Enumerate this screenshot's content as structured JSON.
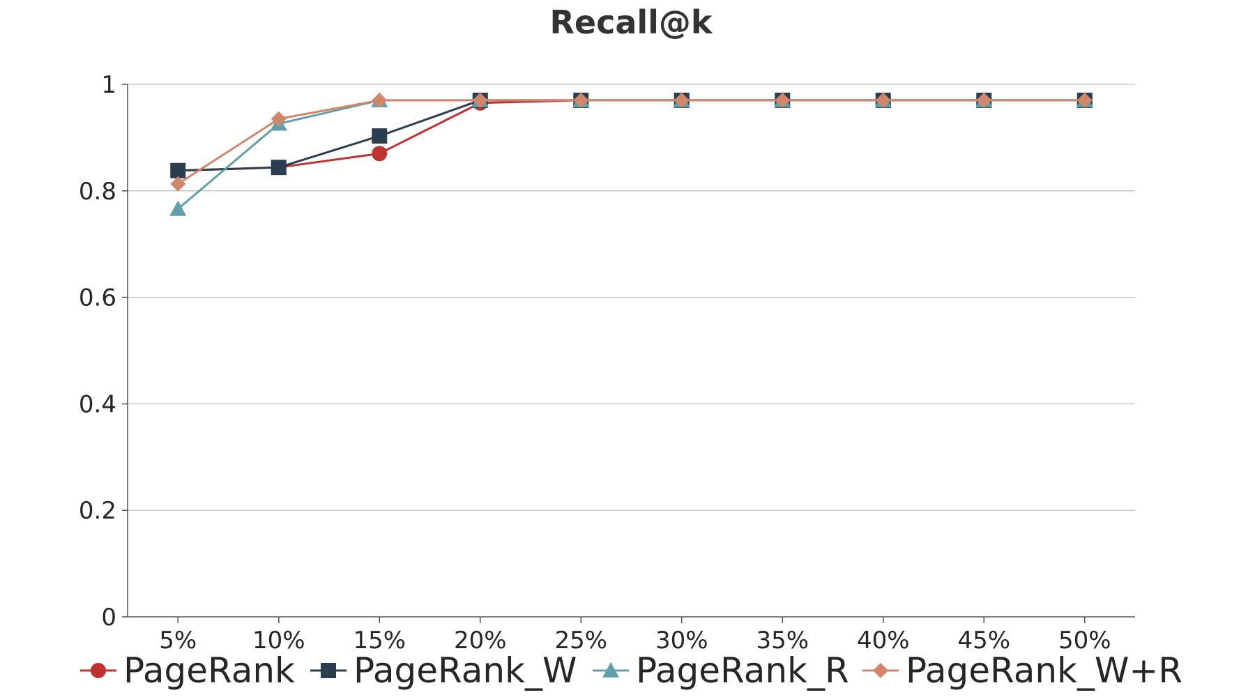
{
  "chart_data": {
    "type": "line",
    "title": "Recall@k",
    "xlabel": "",
    "ylabel": "",
    "categories": [
      "5%",
      "10%",
      "15%",
      "20%",
      "25%",
      "30%",
      "35%",
      "40%",
      "45%",
      "50%"
    ],
    "ylim": [
      0,
      1
    ],
    "yticks": [
      0,
      0.2,
      0.4,
      0.6,
      0.8,
      1
    ],
    "ytick_labels": [
      "0",
      "0.2",
      "0.4",
      "0.6",
      "0.8",
      "1"
    ],
    "grid": true,
    "legend_position": "bottom",
    "series": [
      {
        "name": "PageRank",
        "marker": "circle",
        "color": "#c0312f",
        "values": [
          0.838,
          0.844,
          0.87,
          0.965,
          0.97,
          0.97,
          0.97,
          0.97,
          0.97,
          0.97
        ]
      },
      {
        "name": "PageRank_W",
        "marker": "square",
        "color": "#2b3e50",
        "values": [
          0.838,
          0.844,
          0.903,
          0.97,
          0.97,
          0.97,
          0.97,
          0.97,
          0.97,
          0.97
        ]
      },
      {
        "name": "PageRank_R",
        "marker": "triangle",
        "color": "#5fa0aa",
        "values": [
          0.766,
          0.926,
          0.97,
          0.97,
          0.97,
          0.97,
          0.97,
          0.97,
          0.97,
          0.97
        ]
      },
      {
        "name": "PageRank_W+R",
        "marker": "diamond",
        "color": "#d3876a",
        "values": [
          0.813,
          0.935,
          0.97,
          0.97,
          0.97,
          0.97,
          0.97,
          0.97,
          0.97,
          0.97
        ]
      }
    ]
  }
}
